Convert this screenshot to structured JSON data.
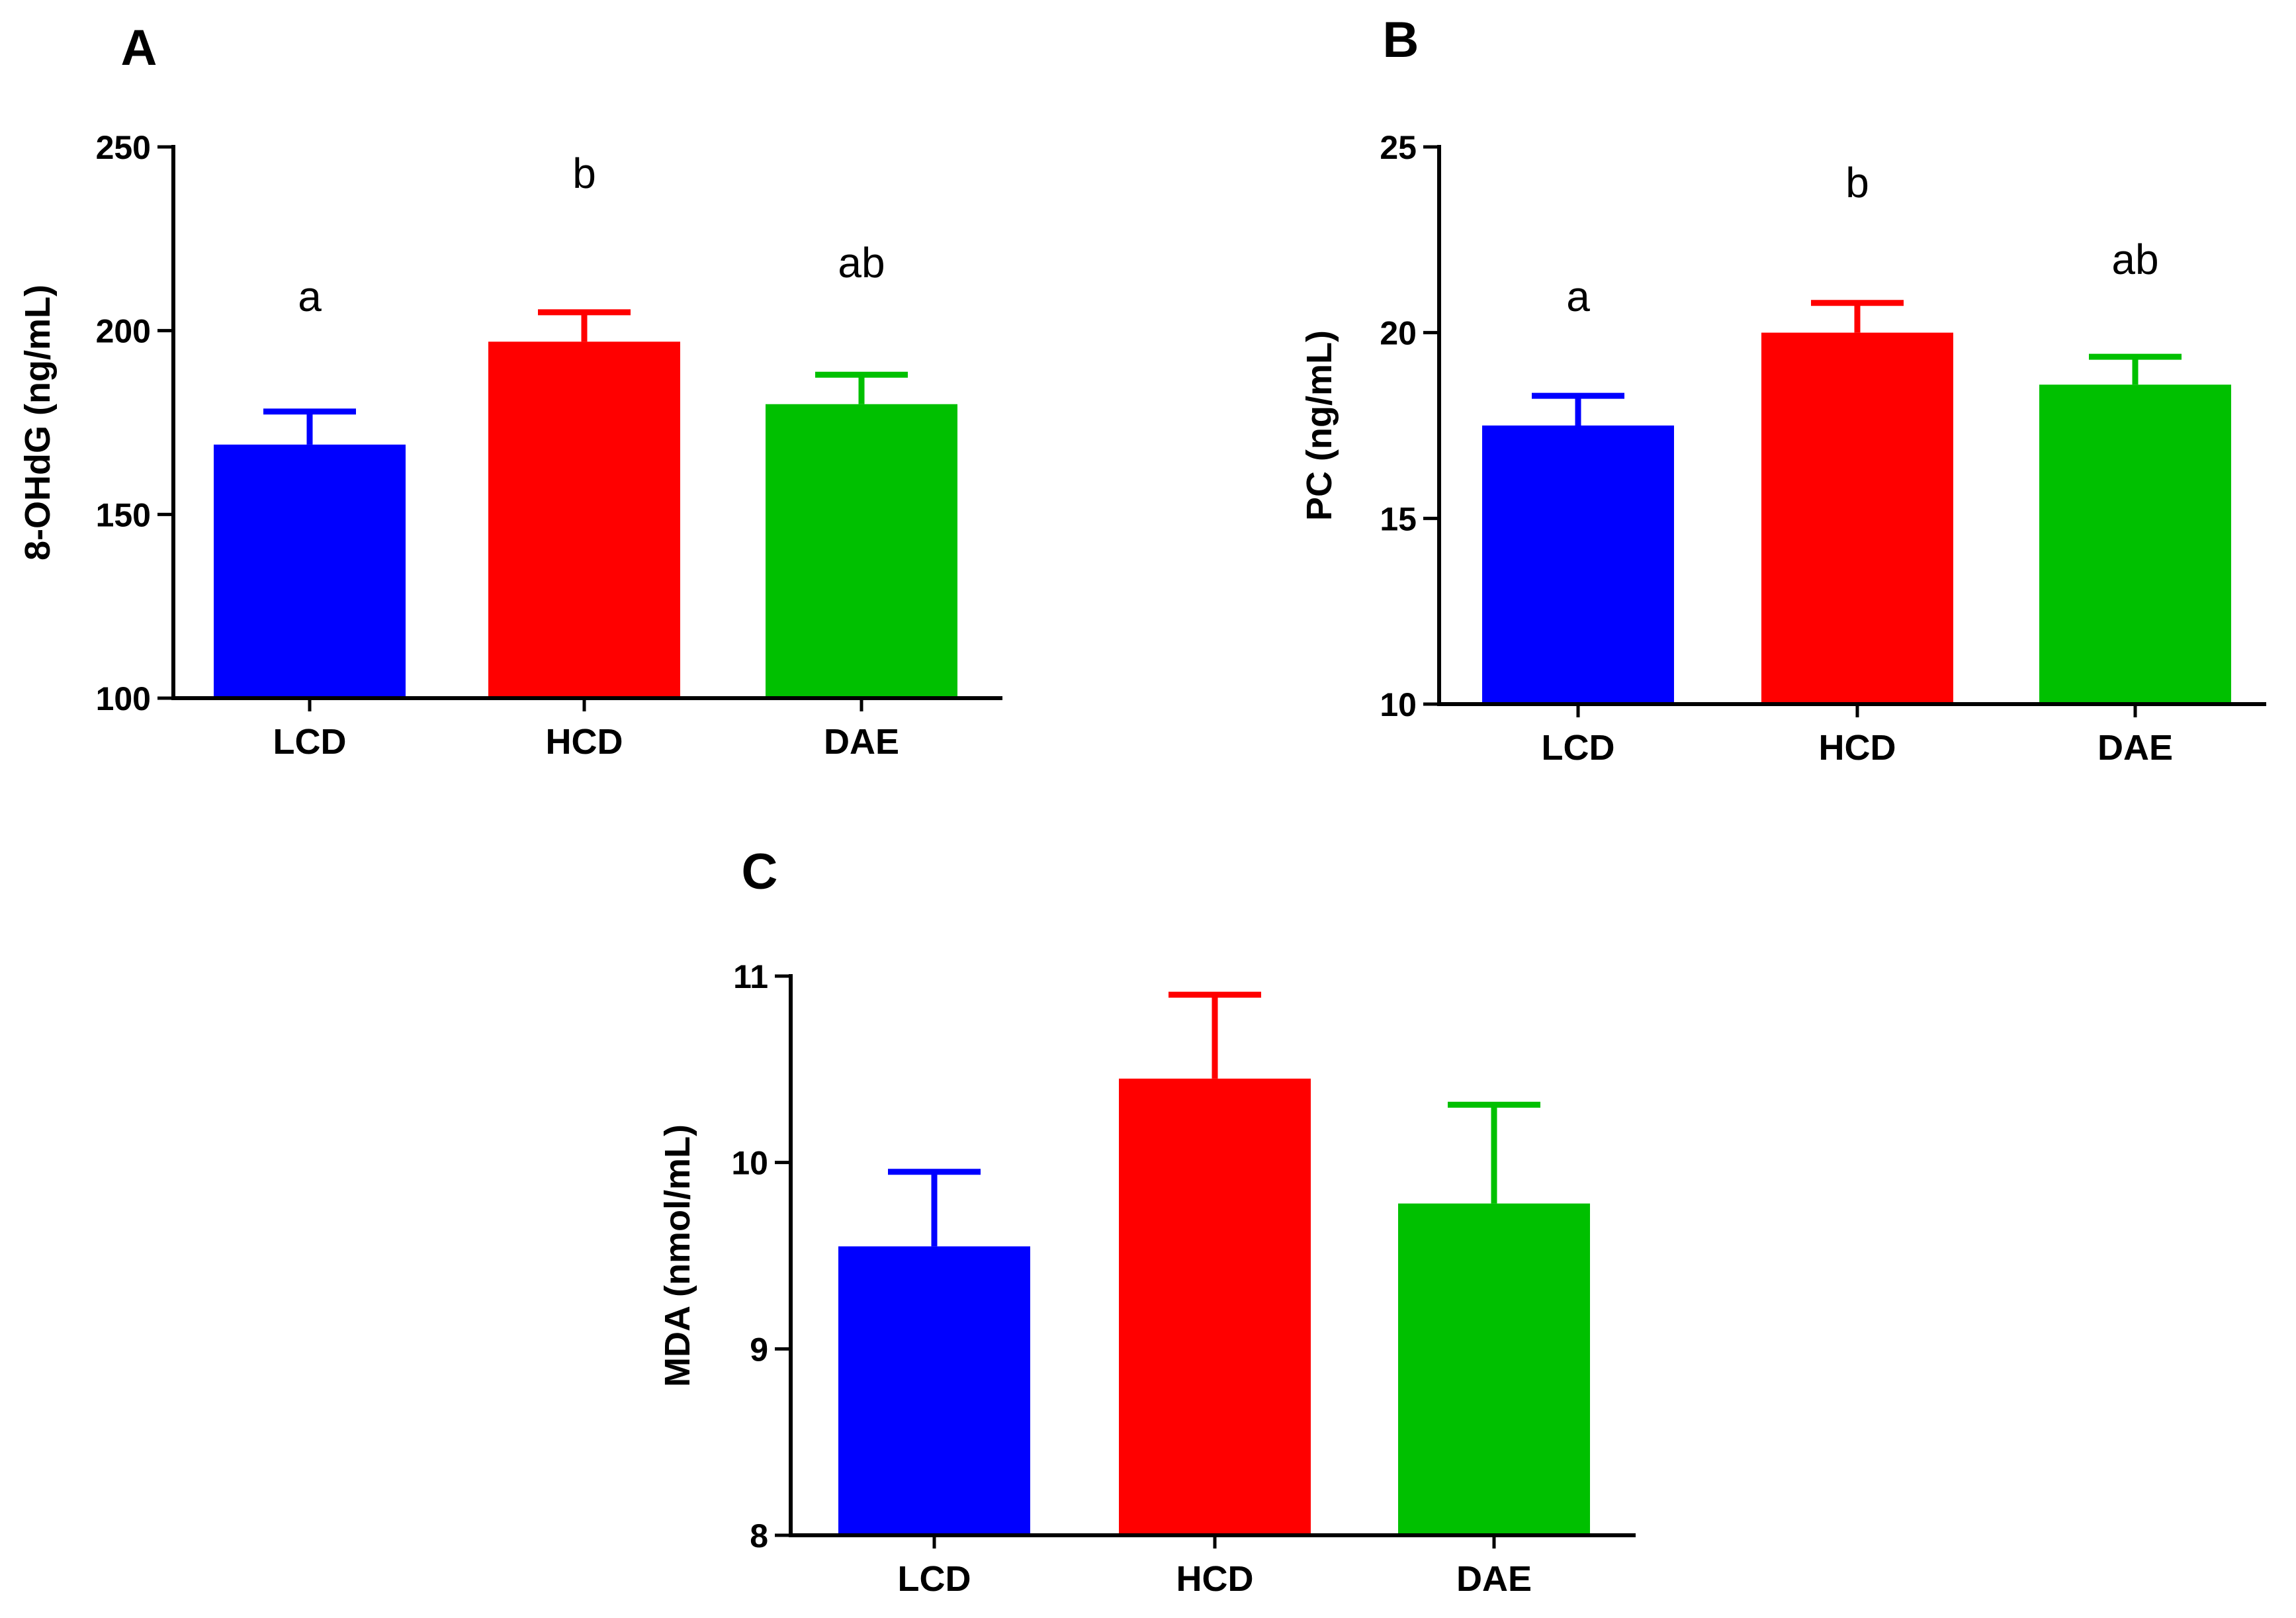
{
  "chart_data": [
    {
      "panel": "A",
      "type": "bar",
      "categories": [
        "LCD",
        "HCD",
        "DAE"
      ],
      "values": [
        169,
        197,
        180
      ],
      "errors": [
        9,
        8,
        8
      ],
      "colors": [
        "#0000ff",
        "#ff0000",
        "#00c000"
      ],
      "significance": [
        "a",
        "b",
        "ab"
      ],
      "ylabel": "8-OHdG (ng/mL)",
      "ylim": [
        100,
        250
      ],
      "yticks": [
        100,
        150,
        200,
        250
      ],
      "ytick_labels": [
        "100",
        "150",
        "200",
        "250"
      ],
      "grid": false
    },
    {
      "panel": "B",
      "type": "bar",
      "categories": [
        "LCD",
        "HCD",
        "DAE"
      ],
      "values": [
        17.5,
        20.0,
        18.6
      ],
      "errors": [
        0.8,
        0.8,
        0.75
      ],
      "colors": [
        "#0000ff",
        "#ff0000",
        "#00c000"
      ],
      "significance": [
        "a",
        "b",
        "ab"
      ],
      "ylabel": "PC (ng/mL)",
      "ylim": [
        10,
        25
      ],
      "yticks": [
        10,
        15,
        20,
        25
      ],
      "ytick_labels": [
        "10",
        "15",
        "20",
        "25"
      ],
      "grid": false
    },
    {
      "panel": "C",
      "type": "bar",
      "categories": [
        "LCD",
        "HCD",
        "DAE"
      ],
      "values": [
        9.55,
        10.45,
        9.78
      ],
      "errors": [
        0.4,
        0.45,
        0.53
      ],
      "colors": [
        "#0000ff",
        "#ff0000",
        "#00c000"
      ],
      "significance": [
        "",
        "",
        ""
      ],
      "ylabel": "MDA (nmol/mL)",
      "ylim": [
        8,
        11
      ],
      "yticks": [
        8,
        9,
        10,
        11
      ],
      "ytick_labels": [
        "8",
        "9",
        "10",
        "11"
      ],
      "grid": false
    }
  ]
}
